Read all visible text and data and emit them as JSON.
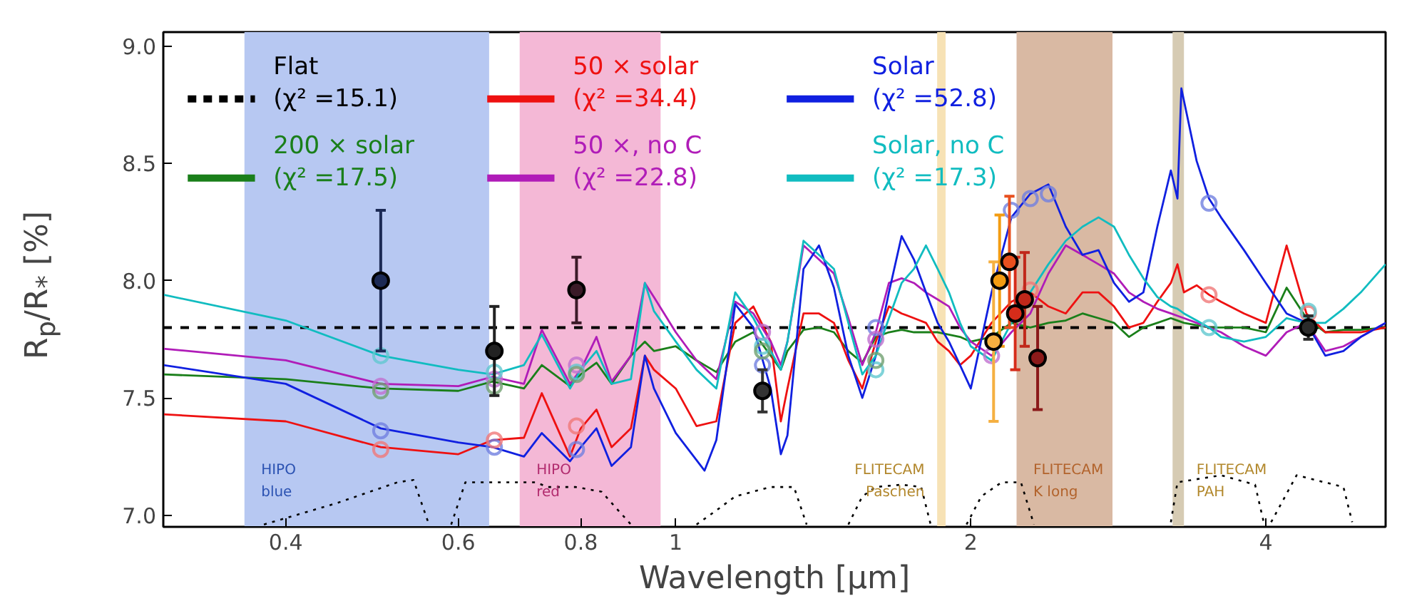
{
  "chart_data": {
    "type": "line",
    "xlabel": "Wavelength [μm]",
    "ylabel": "R$_{p}$/R$_{*}$ [%]",
    "log": "x",
    "grid": false,
    "legend": "top left",
    "xlim": [
      0.3,
      5.3
    ],
    "ylim": [
      6.95,
      9.06
    ],
    "xticks": [
      0.4,
      0.6,
      0.8,
      1,
      2,
      4
    ],
    "yticks": [
      {
        "value": 7,
        "label": "7.0"
      },
      {
        "value": 7.5,
        "label": "7.5"
      },
      {
        "value": 8,
        "label": "8.0"
      },
      {
        "value": 8.5,
        "label": "8.5"
      },
      {
        "value": 9,
        "label": "9.0"
      }
    ],
    "bands": [
      {
        "axis": "x",
        "from": 0.363,
        "to": 0.645,
        "label": "HIPO\nblue",
        "color": "#b7c8f2"
      },
      {
        "axis": "x",
        "from": 0.693,
        "to": 0.965,
        "label": "HIPO\nred",
        "color": "#f4b8d6"
      },
      {
        "axis": "x",
        "from": 1.848,
        "to": 1.885,
        "label": "FLITECAM\nPaschen",
        "color": "#f7e2b5"
      },
      {
        "axis": "x",
        "from": 2.227,
        "to": 2.79,
        "label": "FLITECAM\nK long",
        "color": "#d9b9a3"
      },
      {
        "axis": "x",
        "from": 3.213,
        "to": 3.3,
        "label": "FLITECAM\nPAH",
        "color": "#d6cbb3"
      }
    ],
    "series": [
      {
        "name": "Flat\n(χ² =15.1)",
        "color": "#000000",
        "line_style": "dashed",
        "x": [
          0.3,
          5.3
        ],
        "values": [
          7.8,
          7.8
        ]
      },
      {
        "name": "200 × solar\n(χ² =17.5)",
        "color": "#1a7f1a",
        "x": [
          0.3,
          0.4,
          0.5,
          0.6,
          0.65,
          0.7,
          0.73,
          0.78,
          0.8,
          0.83,
          0.86,
          0.9,
          0.93,
          0.95,
          1.0,
          1.05,
          1.1,
          1.15,
          1.2,
          1.25,
          1.28,
          1.3,
          1.35,
          1.4,
          1.45,
          1.5,
          1.55,
          1.6,
          1.65,
          1.7,
          1.75,
          1.8,
          1.85,
          1.9,
          1.95,
          2.0,
          2.1,
          2.2,
          2.3,
          2.4,
          2.5,
          2.6,
          2.7,
          2.8,
          2.9,
          3.0,
          3.1,
          3.2,
          3.25,
          3.3,
          3.4,
          3.5,
          3.6,
          3.8,
          4.0,
          4.2,
          4.4,
          4.6,
          4.8,
          5.0,
          5.3
        ],
        "values": [
          7.6,
          7.58,
          7.54,
          7.53,
          7.57,
          7.54,
          7.64,
          7.55,
          7.6,
          7.65,
          7.56,
          7.68,
          7.74,
          7.7,
          7.72,
          7.66,
          7.61,
          7.74,
          7.78,
          7.68,
          7.62,
          7.7,
          7.79,
          7.8,
          7.78,
          7.7,
          7.65,
          7.76,
          7.78,
          7.79,
          7.78,
          7.78,
          7.78,
          7.77,
          7.76,
          7.74,
          7.76,
          7.82,
          7.8,
          7.82,
          7.83,
          7.86,
          7.84,
          7.82,
          7.76,
          7.8,
          7.82,
          7.84,
          7.83,
          7.82,
          7.81,
          7.8,
          7.8,
          7.8,
          7.78,
          7.97,
          7.84,
          7.78,
          7.79,
          7.79,
          7.8
        ]
      },
      {
        "name": "50 × solar\n(χ² =34.4)",
        "color": "#ee1111",
        "x": [
          0.3,
          0.4,
          0.5,
          0.6,
          0.65,
          0.7,
          0.73,
          0.78,
          0.8,
          0.83,
          0.86,
          0.9,
          0.93,
          0.95,
          1.0,
          1.05,
          1.1,
          1.15,
          1.2,
          1.25,
          1.28,
          1.3,
          1.35,
          1.4,
          1.45,
          1.5,
          1.55,
          1.6,
          1.65,
          1.7,
          1.75,
          1.8,
          1.85,
          1.9,
          1.95,
          2.0,
          2.1,
          2.2,
          2.3,
          2.4,
          2.5,
          2.6,
          2.7,
          2.8,
          2.9,
          3.0,
          3.1,
          3.2,
          3.25,
          3.3,
          3.4,
          3.5,
          3.6,
          3.8,
          4.0,
          4.2,
          4.4,
          4.6,
          4.8,
          5.0,
          5.3
        ],
        "values": [
          7.43,
          7.4,
          7.29,
          7.26,
          7.32,
          7.33,
          7.52,
          7.25,
          7.37,
          7.45,
          7.29,
          7.37,
          7.68,
          7.62,
          7.54,
          7.38,
          7.4,
          7.82,
          7.89,
          7.74,
          7.4,
          7.54,
          7.86,
          7.86,
          7.82,
          7.66,
          7.54,
          7.74,
          7.89,
          7.86,
          7.84,
          7.82,
          7.74,
          7.7,
          7.64,
          7.68,
          7.82,
          7.91,
          7.95,
          7.89,
          7.86,
          7.95,
          7.95,
          7.89,
          7.8,
          7.82,
          7.91,
          7.99,
          8.07,
          7.95,
          7.98,
          7.94,
          7.91,
          7.86,
          7.82,
          8.15,
          7.86,
          7.78,
          7.78,
          7.78,
          7.8
        ]
      },
      {
        "name": "50 ×, no C\n(χ² =22.8)",
        "color": "#b01cb8",
        "x": [
          0.3,
          0.4,
          0.5,
          0.6,
          0.65,
          0.7,
          0.73,
          0.78,
          0.8,
          0.83,
          0.86,
          0.9,
          0.93,
          0.95,
          1.0,
          1.05,
          1.1,
          1.15,
          1.2,
          1.25,
          1.28,
          1.3,
          1.35,
          1.4,
          1.45,
          1.5,
          1.55,
          1.6,
          1.65,
          1.7,
          1.75,
          1.8,
          1.85,
          1.9,
          1.95,
          2.0,
          2.1,
          2.2,
          2.3,
          2.4,
          2.5,
          2.6,
          2.7,
          2.8,
          2.9,
          3.0,
          3.1,
          3.2,
          3.25,
          3.3,
          3.4,
          3.5,
          3.6,
          3.8,
          4.0,
          4.2,
          4.4,
          4.6,
          4.8,
          5.0,
          5.3
        ],
        "values": [
          7.71,
          7.66,
          7.56,
          7.55,
          7.59,
          7.56,
          7.79,
          7.56,
          7.62,
          7.76,
          7.57,
          7.68,
          7.99,
          7.93,
          7.78,
          7.66,
          7.58,
          7.91,
          7.86,
          7.74,
          7.64,
          7.74,
          8.15,
          8.09,
          8.03,
          7.84,
          7.64,
          7.78,
          7.99,
          8.01,
          7.99,
          7.95,
          7.92,
          7.89,
          7.8,
          7.74,
          7.68,
          7.78,
          7.86,
          8.03,
          8.15,
          8.11,
          8.07,
          8.03,
          7.95,
          7.91,
          7.88,
          7.86,
          7.85,
          7.84,
          7.82,
          7.8,
          7.78,
          7.72,
          7.68,
          7.78,
          7.82,
          7.7,
          7.72,
          7.76,
          7.82
        ]
      },
      {
        "name": "Solar\n(χ² =52.8)",
        "color": "#1020e0",
        "x": [
          0.3,
          0.4,
          0.5,
          0.6,
          0.65,
          0.7,
          0.73,
          0.78,
          0.8,
          0.83,
          0.86,
          0.9,
          0.93,
          0.95,
          1.0,
          1.07,
          1.1,
          1.15,
          1.2,
          1.25,
          1.28,
          1.3,
          1.35,
          1.4,
          1.45,
          1.5,
          1.55,
          1.6,
          1.65,
          1.7,
          1.75,
          1.8,
          1.85,
          1.9,
          1.95,
          2.0,
          2.1,
          2.2,
          2.3,
          2.4,
          2.5,
          2.6,
          2.7,
          2.8,
          2.9,
          3.0,
          3.1,
          3.2,
          3.25,
          3.28,
          3.4,
          3.5,
          3.6,
          3.8,
          4.0,
          4.2,
          4.4,
          4.6,
          4.8,
          5.0,
          5.3
        ],
        "values": [
          7.64,
          7.56,
          7.37,
          7.31,
          7.29,
          7.25,
          7.35,
          7.23,
          7.29,
          7.37,
          7.21,
          7.29,
          7.68,
          7.54,
          7.35,
          7.19,
          7.32,
          7.9,
          7.8,
          7.54,
          7.26,
          7.34,
          8.05,
          8.15,
          7.97,
          7.68,
          7.5,
          7.68,
          7.95,
          8.19,
          8.09,
          7.95,
          7.82,
          7.74,
          7.64,
          7.54,
          7.95,
          8.27,
          8.37,
          8.41,
          8.23,
          8.11,
          8.13,
          7.99,
          7.91,
          7.95,
          8.23,
          8.47,
          8.35,
          8.82,
          8.51,
          8.35,
          8.27,
          8.13,
          7.99,
          7.86,
          7.82,
          7.68,
          7.7,
          7.76,
          7.82
        ]
      },
      {
        "name": "Solar, no C\n(χ² =17.3)",
        "color": "#11bcc0",
        "x": [
          0.3,
          0.4,
          0.5,
          0.6,
          0.65,
          0.7,
          0.73,
          0.78,
          0.8,
          0.83,
          0.86,
          0.9,
          0.93,
          0.95,
          1.0,
          1.05,
          1.1,
          1.15,
          1.2,
          1.25,
          1.28,
          1.3,
          1.35,
          1.4,
          1.45,
          1.5,
          1.55,
          1.6,
          1.65,
          1.7,
          1.75,
          1.8,
          1.85,
          1.9,
          1.95,
          2.0,
          2.1,
          2.2,
          2.3,
          2.4,
          2.5,
          2.6,
          2.7,
          2.8,
          2.9,
          3.0,
          3.1,
          3.2,
          3.25,
          3.3,
          3.4,
          3.5,
          3.6,
          3.8,
          4.0,
          4.2,
          4.4,
          4.6,
          4.8,
          5.0,
          5.3
        ],
        "values": [
          7.94,
          7.83,
          7.68,
          7.62,
          7.6,
          7.64,
          7.77,
          7.54,
          7.62,
          7.7,
          7.56,
          7.58,
          7.99,
          7.87,
          7.74,
          7.62,
          7.54,
          7.95,
          7.84,
          7.7,
          7.62,
          7.74,
          8.17,
          8.11,
          8.05,
          7.82,
          7.6,
          7.68,
          7.84,
          7.99,
          8.05,
          8.15,
          8.05,
          7.95,
          7.82,
          7.72,
          7.66,
          7.82,
          7.95,
          8.07,
          8.17,
          8.23,
          8.27,
          8.23,
          8.11,
          8.01,
          7.93,
          7.89,
          7.88,
          7.86,
          7.83,
          7.8,
          7.76,
          7.74,
          7.76,
          7.84,
          7.82,
          7.82,
          7.88,
          7.95,
          8.07
        ]
      },
      {
        "color": "#000000",
        "line_style": "dotted",
        "x": [
          0.38,
          0.45,
          0.52,
          0.54,
          0.56,
          0.58,
          0.59,
          0.61,
          0.72,
          0.74,
          0.79,
          0.84,
          0.9,
          0.95,
          1.05,
          1.1,
          1.15,
          1.25,
          1.32,
          1.36,
          1.45,
          1.5,
          1.55,
          1.6,
          1.7,
          1.78,
          1.82,
          1.9,
          1.98,
          2.05,
          2.15,
          2.25,
          2.32,
          2.6,
          3.2,
          3.25,
          3.6,
          3.9,
          3.98,
          4.0,
          4.05,
          4.3,
          4.8,
          4.9
        ],
        "values": [
          6.96,
          7.05,
          7.14,
          7.15,
          6.96,
          null,
          6.96,
          7.14,
          7.14,
          7.12,
          7.12,
          7.1,
          6.96,
          null,
          6.96,
          7.02,
          7.08,
          7.12,
          7.12,
          6.96,
          null,
          6.96,
          7.08,
          7.12,
          7.13,
          7.12,
          6.96,
          null,
          6.96,
          7.08,
          7.14,
          7.14,
          6.96,
          null,
          6.97,
          7.14,
          7.17,
          7.13,
          6.97,
          null,
          6.97,
          7.17,
          7.12,
          6.97
        ]
      },
      {
        "type": "scatter",
        "marker": "circle",
        "color": "#7080e0",
        "x": [
          0.5,
          0.653,
          0.792,
          1.226,
          1.6,
          2.2,
          2.3,
          2.4,
          3.5
        ],
        "values": [
          7.36,
          7.29,
          7.28,
          7.64,
          7.8,
          8.3,
          8.35,
          8.37,
          8.33
        ]
      },
      {
        "type": "scatter",
        "marker": "circle",
        "color": "#f07878",
        "x": [
          0.5,
          0.653,
          0.792,
          2.3,
          3.5,
          4.42
        ],
        "values": [
          7.28,
          7.32,
          7.38,
          7.96,
          7.94,
          7.86
        ]
      },
      {
        "type": "scatter",
        "marker": "circle",
        "color": "#c070d0",
        "x": [
          0.5,
          0.653,
          0.792,
          1.226,
          1.6,
          2.1
        ],
        "values": [
          7.55,
          7.58,
          7.64,
          7.78,
          7.75,
          7.68
        ]
      },
      {
        "type": "scatter",
        "marker": "circle",
        "color": "#60c8d0",
        "x": [
          0.5,
          0.653,
          0.792,
          1.226,
          1.6,
          3.5,
          4.42
        ],
        "values": [
          7.68,
          7.61,
          7.61,
          7.72,
          7.62,
          7.8,
          7.87
        ]
      },
      {
        "type": "scatter",
        "marker": "circle",
        "color": "#70a070",
        "x": [
          0.5,
          0.653,
          0.792,
          1.226,
          1.6
        ],
        "values": [
          7.53,
          7.55,
          7.6,
          7.7,
          7.66
        ]
      },
      {
        "type": "scatter",
        "marker": "circle",
        "x": [
          0.5,
          0.653,
          0.792,
          1.226,
          2.11,
          2.14,
          2.19,
          2.22,
          2.27,
          2.34,
          4.42
        ],
        "values": [
          8.0,
          7.7,
          7.96,
          7.53,
          7.74,
          8.0,
          8.08,
          7.86,
          7.92,
          7.67,
          7.8
        ],
        "errors": [
          0.3,
          0.19,
          0.14,
          0.09,
          0.34,
          0.28,
          0.28,
          0.24,
          0.2,
          0.22,
          0.05
        ],
        "colors": [
          "#1c2a55",
          "#222222",
          "#3b1a28",
          "#333333",
          "#f5b041",
          "#f39c12",
          "#e8501e",
          "#d62c1a",
          "#c0281a",
          "#8b1a1a",
          "#2b2b2b"
        ]
      }
    ]
  }
}
